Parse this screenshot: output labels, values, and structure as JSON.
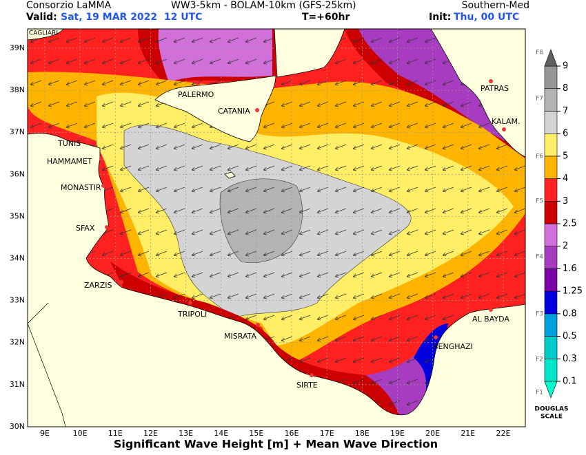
{
  "header": {
    "org": "Consorzio LaMMA",
    "model": "WW3-5km - BOLAM-10km (GFS-25km)",
    "region": "Southern-Med",
    "valid_label": "Valid:",
    "valid": "Sat, 19 MAR 2022  12 UTC",
    "step": "T=+60hr",
    "init_label": "Init:",
    "init": "Thu, 00 UTC"
  },
  "map": {
    "lat_labels": [
      "39N",
      "38N",
      "37N",
      "36N",
      "35N",
      "34N",
      "33N",
      "32N",
      "31N",
      "30N"
    ],
    "lon_labels": [
      "9E",
      "10E",
      "11E",
      "12E",
      "13E",
      "14E",
      "15E",
      "16E",
      "17E",
      "18E",
      "19E",
      "20E",
      "21E",
      "22E"
    ],
    "places": [
      "CAGLIARI",
      "PALERMO",
      "CATANIA",
      "TUNIS",
      "HAMMAMET",
      "MONASTIR",
      "SFAX",
      "ZARZIS",
      "TRIPOLI",
      "MISRATA",
      "SIRTE",
      "BENGHAZI",
      "AL BAYDA",
      "KALAM.",
      "PATRAS"
    ]
  },
  "legend": {
    "levels": [
      "0.1",
      "0.3",
      "0.5",
      "0.8",
      "1.25",
      "1.6",
      "2",
      "2.5",
      "3",
      "4",
      "5",
      "6",
      "7",
      "8",
      "9"
    ],
    "colors": [
      "#00ffcc",
      "#00e6c8",
      "#00cccc",
      "#00a0e0",
      "#0000dd",
      "#7a00a8",
      "#a83cc0",
      "#d070d8",
      "#cc0000",
      "#ff2020",
      "#ffb400",
      "#ffee66",
      "#d4d4d4",
      "#b4b4b4",
      "#969696",
      "#606060"
    ],
    "douglas": [
      "F1",
      "F2",
      "F3",
      "F4",
      "F5",
      "F6",
      "F7",
      "F8"
    ],
    "title": "DOUGLAS",
    "subtitle": "SCALE"
  },
  "footer": "Significant Wave Height [m] + Mean Wave Direction"
}
